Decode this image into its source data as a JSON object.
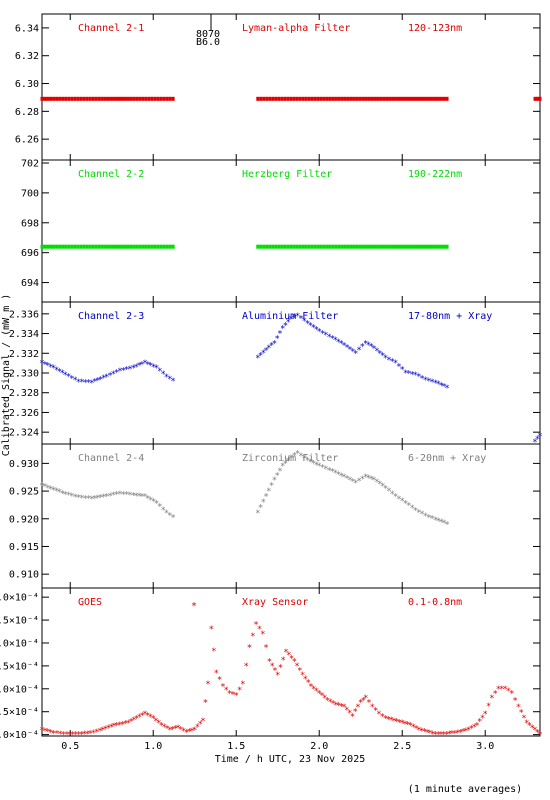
{
  "ylabel": "Calibrated Signal / (mW m  )",
  "xlabel": "Time / h UTC, 23 Nov 2025",
  "footer_note": "(1 minute averages)",
  "x_axis": {
    "range": [
      0.33,
      3.33
    ],
    "ticks": [
      "0.5",
      "1.0",
      "1.5",
      "2.0",
      "2.5",
      "3.0"
    ],
    "tick_values": [
      0.5,
      1.0,
      1.5,
      2.0,
      2.5,
      3.0
    ]
  },
  "marker": {
    "label_top": "8070",
    "label_bottom": "B6.0",
    "x": 1.33
  },
  "goes_star": {
    "symbol": "*",
    "x": 1.33
  },
  "chart_data": [
    {
      "type": "scatter",
      "labels": [
        "Channel 2-1",
        "Lyman-alpha Filter",
        "120-123nm"
      ],
      "color": "#e00000",
      "ylim": [
        6.245,
        6.35
      ],
      "yticks": [
        "6.26",
        "6.28",
        "6.30",
        "6.32",
        "6.34"
      ],
      "ytick_values": [
        6.26,
        6.28,
        6.3,
        6.32,
        6.34
      ],
      "segments": [
        {
          "x_start": 0.33,
          "x_end": 1.12,
          "x": [
            0.33,
            1.12
          ],
          "y": [
            6.289,
            6.289
          ],
          "density": "continuous"
        },
        {
          "x_start": 1.63,
          "x_end": 2.77,
          "x": [
            1.63,
            2.77
          ],
          "y": [
            6.289,
            6.289
          ],
          "density": "continuous"
        },
        {
          "x_start": 3.3,
          "x_end": 3.33,
          "x": [
            3.3,
            3.33
          ],
          "y": [
            6.289,
            6.289
          ],
          "density": "continuous"
        }
      ]
    },
    {
      "type": "scatter",
      "labels": [
        "Channel 2-2",
        "Herzberg Filter",
        "190-222nm"
      ],
      "color": "#00dd00",
      "ylim": [
        692.7,
        702.2
      ],
      "yticks": [
        "694",
        "696",
        "698",
        "700",
        "702"
      ],
      "ytick_values": [
        694,
        696,
        698,
        700,
        702
      ],
      "segments": [
        {
          "x_start": 0.33,
          "x_end": 1.12,
          "x": [
            0.33,
            1.12
          ],
          "y": [
            696.4,
            696.4
          ],
          "density": "continuous"
        },
        {
          "x_start": 1.63,
          "x_end": 2.77,
          "x": [
            1.63,
            2.77
          ],
          "y": [
            696.4,
            696.4
          ],
          "density": "continuous"
        }
      ]
    },
    {
      "type": "scatter",
      "labels": [
        "Channel 2-3",
        "Aluminium Filter",
        "17-80nm + Xray"
      ],
      "color": "#0000cc",
      "ylim": [
        2.3228,
        2.3372
      ],
      "yticks": [
        "2.324",
        "2.326",
        "2.328",
        "2.330",
        "2.332",
        "2.334",
        "2.336"
      ],
      "ytick_values": [
        2.324,
        2.326,
        2.328,
        2.33,
        2.332,
        2.334,
        2.336
      ],
      "segments": [
        {
          "x": [
            0.33,
            0.4,
            0.47,
            0.55,
            0.63,
            0.72,
            0.8,
            0.88,
            0.95,
            1.02,
            1.08,
            1.12
          ],
          "y": [
            2.331,
            2.3305,
            2.3298,
            2.3291,
            2.329,
            2.3296,
            2.3302,
            2.3305,
            2.331,
            2.3305,
            2.3296,
            2.3292
          ]
        },
        {
          "x": [
            1.63,
            1.68,
            1.73,
            1.78,
            1.83,
            1.87,
            1.93,
            2.0,
            2.08,
            2.15,
            2.22,
            2.28,
            2.33,
            2.4,
            2.46,
            2.52,
            2.58,
            2.64,
            2.7,
            2.77
          ],
          "y": [
            2.3315,
            2.3323,
            2.333,
            2.3345,
            2.3355,
            2.3358,
            2.335,
            2.3342,
            2.3335,
            2.3328,
            2.332,
            2.333,
            2.3325,
            2.3315,
            2.331,
            2.33,
            2.3298,
            2.3293,
            2.329,
            2.3285
          ]
        },
        {
          "x": [
            3.3,
            3.33
          ],
          "y": [
            2.323,
            2.3236
          ]
        }
      ]
    },
    {
      "type": "scatter",
      "labels": [
        "Channel 2-4",
        "Zirconium Filter",
        "6-20nm + Xray"
      ],
      "color": "#808080",
      "ylim": [
        0.9075,
        0.9335
      ],
      "yticks": [
        "0.910",
        "0.915",
        "0.920",
        "0.925",
        "0.930"
      ],
      "ytick_values": [
        0.91,
        0.915,
        0.92,
        0.925,
        0.93
      ],
      "segments": [
        {
          "x": [
            0.33,
            0.4,
            0.47,
            0.55,
            0.63,
            0.72,
            0.8,
            0.88,
            0.95,
            1.02,
            1.08,
            1.12
          ],
          "y": [
            0.926,
            0.9252,
            0.9244,
            0.9238,
            0.9236,
            0.924,
            0.9245,
            0.9242,
            0.924,
            0.9228,
            0.921,
            0.9202
          ]
        },
        {
          "x": [
            1.63,
            1.68,
            1.73,
            1.78,
            1.83,
            1.87,
            1.93,
            2.0,
            2.08,
            2.15,
            2.22,
            2.28,
            2.33,
            2.4,
            2.46,
            2.52,
            2.58,
            2.64,
            2.7,
            2.77
          ],
          "y": [
            0.921,
            0.924,
            0.927,
            0.9295,
            0.931,
            0.9318,
            0.9305,
            0.9295,
            0.9285,
            0.9275,
            0.9265,
            0.9275,
            0.927,
            0.9255,
            0.924,
            0.9228,
            0.9215,
            0.9205,
            0.9198,
            0.919
          ]
        }
      ]
    },
    {
      "type": "scatter",
      "labels": [
        "GOES",
        "Xray Sensor",
        "0.1-0.8nm"
      ],
      "color": "#e00000",
      "ylim": [
        0.000497,
        0.00082
      ],
      "yticks": [
        "5.0×10⁻⁴",
        "5.5×10⁻⁴",
        "6.0×10⁻⁴",
        "6.5×10⁻⁴",
        "7.0×10⁻⁴",
        "7.5×10⁻⁴",
        "8.0×10⁻⁴"
      ],
      "ytick_values": [
        0.0005,
        0.00055,
        0.0006,
        0.00065,
        0.0007,
        0.00075,
        0.0008
      ],
      "segments": [
        {
          "x": [
            0.33,
            0.4,
            0.48,
            0.55,
            0.62,
            0.68,
            0.73,
            0.78,
            0.85,
            0.9,
            0.95,
            1.0,
            1.05,
            1.1,
            1.15,
            1.2,
            1.25,
            1.3,
            1.33
          ],
          "y": [
            0.00051,
            0.000503,
            0.0005,
            0.0005,
            0.000502,
            0.000508,
            0.000515,
            0.00052,
            0.000525,
            0.000535,
            0.000545,
            0.000535,
            0.00052,
            0.00051,
            0.000515,
            0.000505,
            0.00051,
            0.00053,
            0.00061
          ]
        },
        {
          "x": [
            1.35,
            1.38,
            1.42,
            1.46,
            1.5,
            1.54,
            1.58,
            1.62,
            1.66,
            1.7,
            1.75,
            1.8,
            1.85,
            1.9,
            1.95,
            2.0,
            2.05,
            2.1,
            2.15,
            2.2,
            2.25,
            2.28,
            2.32,
            2.36,
            2.4,
            2.45,
            2.5,
            2.55,
            2.6,
            2.65,
            2.7,
            2.75,
            2.8,
            2.85,
            2.9,
            2.95,
            3.0,
            3.04,
            3.08,
            3.12,
            3.16,
            3.2,
            3.25,
            3.3,
            3.33
          ],
          "y": [
            0.00073,
            0.000635,
            0.000605,
            0.00059,
            0.000585,
            0.00061,
            0.00069,
            0.00074,
            0.00072,
            0.00066,
            0.00063,
            0.00068,
            0.00066,
            0.00063,
            0.000605,
            0.00059,
            0.000575,
            0.000565,
            0.00056,
            0.00054,
            0.00057,
            0.00058,
            0.00056,
            0.000545,
            0.000535,
            0.00053,
            0.000525,
            0.00052,
            0.00051,
            0.000505,
            0.0005,
            0.0005,
            0.000502,
            0.000505,
            0.00051,
            0.00052,
            0.000545,
            0.00058,
            0.0006,
            0.0006,
            0.00059,
            0.00056,
            0.000525,
            0.00051,
            0.0005
          ]
        }
      ]
    }
  ]
}
